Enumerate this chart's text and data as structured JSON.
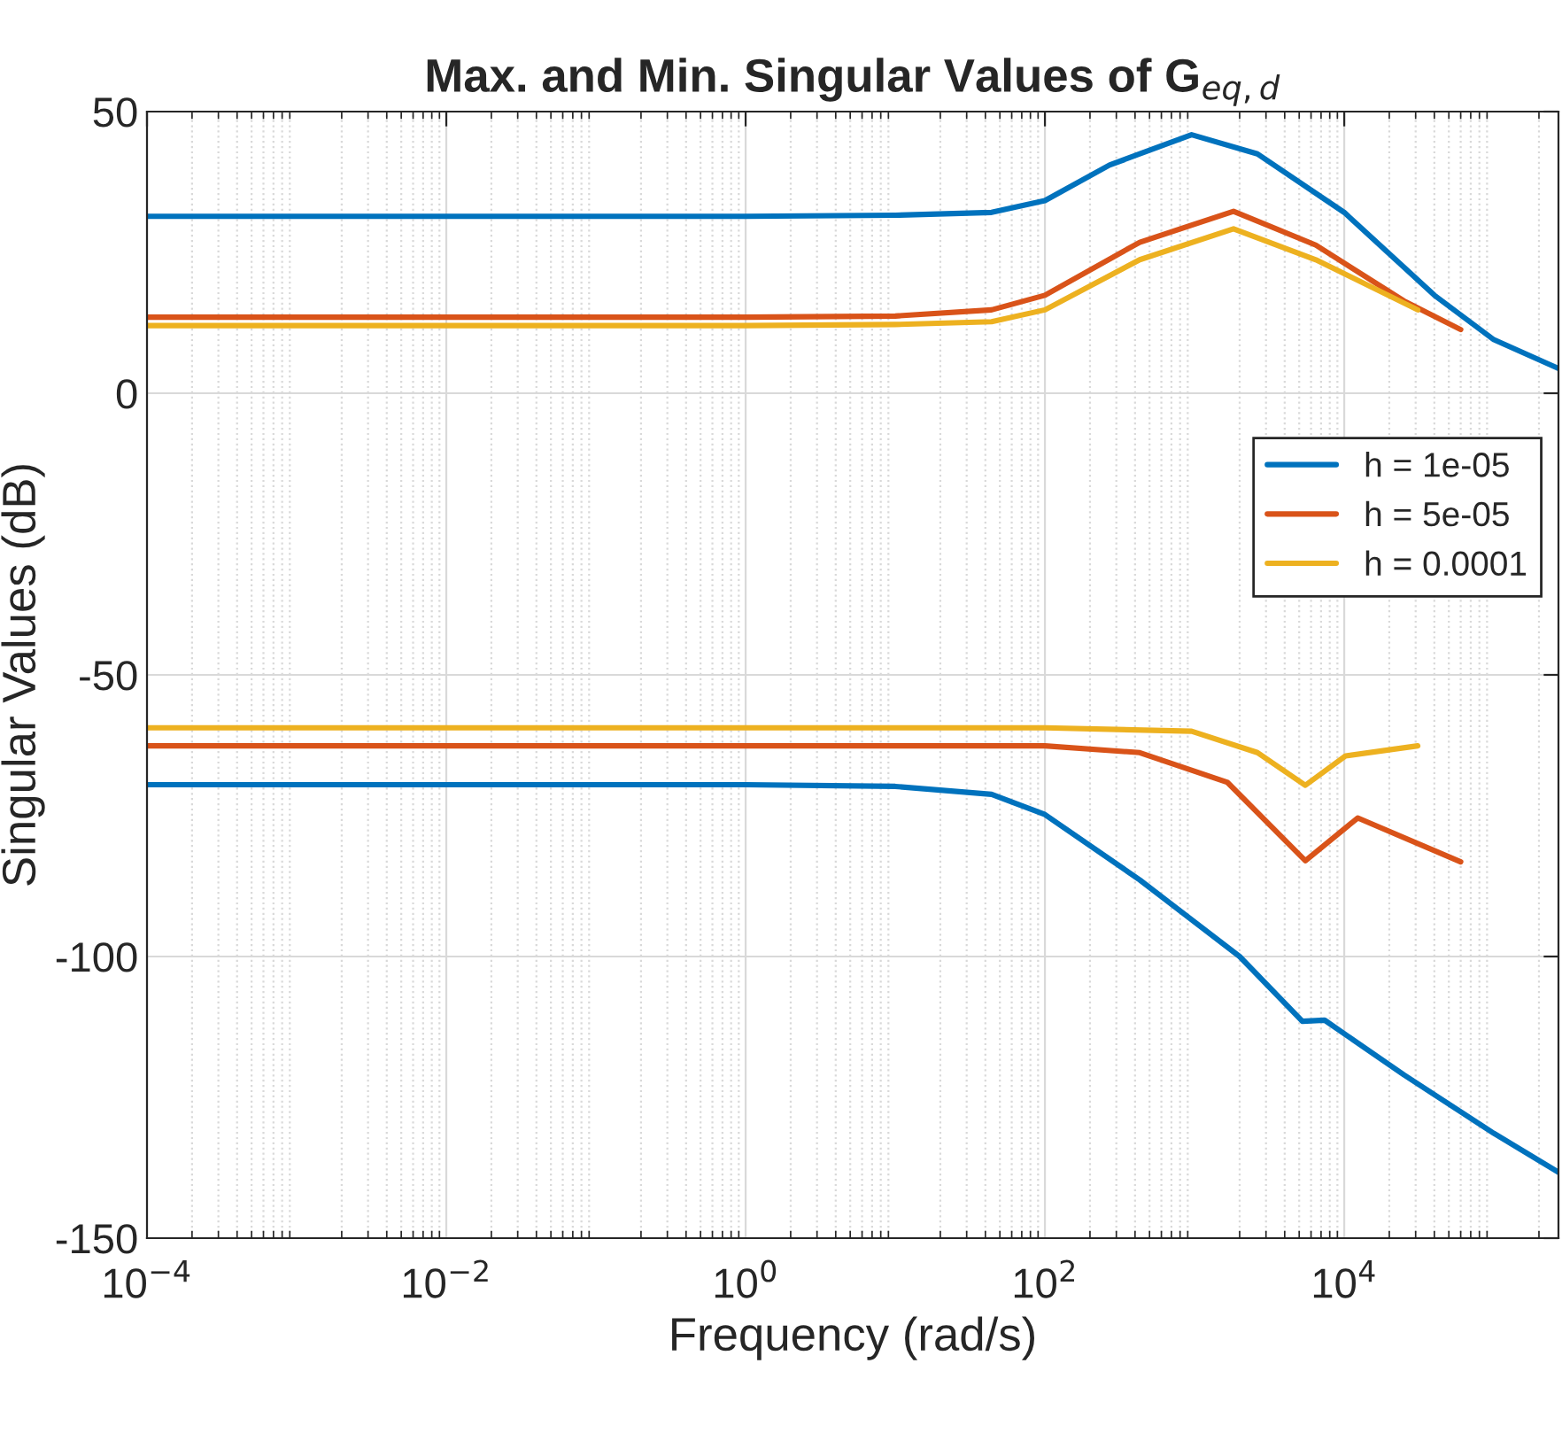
{
  "chart_data": {
    "type": "line",
    "title": "Max. and Min. Singular Values of G$_{eq,d}$",
    "xlabel": "Frequency (rad/s)",
    "ylabel": "Singular Values (dB)",
    "log": "x",
    "grid": true,
    "legend": "right",
    "line_style": "solid",
    "marker": "none",
    "xlim": [
      0.0001,
      270000
    ],
    "xticks": [
      {
        "value": 0.0001,
        "label": "10$^{−4}$"
      },
      {
        "value": 0.01,
        "label": "10$^{−2}$"
      },
      {
        "value": 1,
        "label": "10$^{0}$"
      },
      {
        "value": 100,
        "label": "10$^{2}$"
      },
      {
        "value": 10000,
        "label": "10$^{4}$"
      }
    ],
    "ylim": [
      -150,
      50
    ],
    "yticks": [
      -150,
      -100,
      -50,
      0,
      50
    ],
    "series": [
      {
        "name": "h = 1e-05",
        "color": "#0072bd",
        "x": [
          0.0001,
          1,
          10,
          44,
          100,
          270,
          955,
          2630,
          10000,
          40000,
          100000,
          270000
        ],
        "values": [
          31.4,
          31.4,
          31.6,
          32.1,
          34.2,
          40.5,
          45.9,
          42.5,
          32.1,
          17.4,
          9.5,
          4.4
        ]
      },
      {
        "name": "h = 5e-05",
        "color": "#d95319",
        "x": [
          0.0001,
          1,
          10,
          44,
          100,
          430,
          1820,
          6460,
          25000,
          60000
        ],
        "values": [
          13.5,
          13.5,
          13.7,
          14.8,
          17.4,
          26.8,
          32.3,
          26.3,
          16.4,
          11.3
        ]
      },
      {
        "name": "h = 0.0001",
        "color": "#edb120",
        "x": [
          0.0001,
          1,
          10,
          44,
          100,
          430,
          1820,
          6460,
          31000
        ],
        "values": [
          12.0,
          12.0,
          12.2,
          12.7,
          14.8,
          23.7,
          29.2,
          23.7,
          14.8
        ]
      },
      {
        "color": "#0072bd",
        "x": [
          0.0001,
          1,
          10,
          44,
          100,
          430,
          2000,
          5250,
          7400,
          25000,
          100000,
          270000
        ],
        "values": [
          -69.5,
          -69.5,
          -69.8,
          -71.2,
          -74.8,
          -86.4,
          -100,
          -111.5,
          -111.3,
          -121,
          -131.4,
          -138.3
        ]
      },
      {
        "color": "#d95319",
        "x": [
          0.0001,
          1,
          100,
          430,
          1660,
          5500,
          12300,
          60000
        ],
        "values": [
          -62.6,
          -62.6,
          -62.6,
          -63.8,
          -69.1,
          -83.0,
          -75.4,
          -83.2
        ]
      },
      {
        "color": "#edb120",
        "x": [
          0.0001,
          1,
          100,
          955,
          2630,
          5500,
          10200,
          31000
        ],
        "values": [
          -59.4,
          -59.4,
          -59.4,
          -60.0,
          -63.8,
          -69.6,
          -64.4,
          -62.6
        ]
      }
    ]
  }
}
